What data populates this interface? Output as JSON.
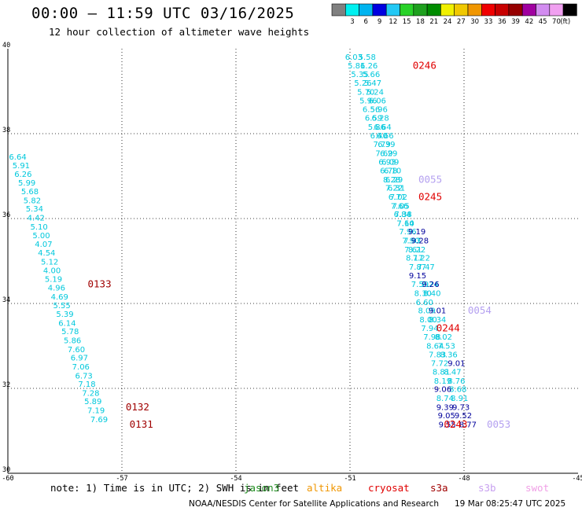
{
  "header": {
    "title": "00:00 – 11:59 UTC 03/16/2025",
    "subtitle": "12 hour collection of altimeter wave heights"
  },
  "legend": {
    "bins": [
      {
        "label": "",
        "color": "#808080"
      },
      {
        "label": "3",
        "color": "#00f0f0"
      },
      {
        "label": "6",
        "color": "#00b4f0"
      },
      {
        "label": "9",
        "color": "#0000e0"
      },
      {
        "label": "12",
        "color": "#22c8f5"
      },
      {
        "label": "15",
        "color": "#28d228"
      },
      {
        "label": "18",
        "color": "#1ea01e"
      },
      {
        "label": "21",
        "color": "#008c00"
      },
      {
        "label": "24",
        "color": "#f0f000"
      },
      {
        "label": "27",
        "color": "#f0c800"
      },
      {
        "label": "30",
        "color": "#f09600"
      },
      {
        "label": "33",
        "color": "#f00000"
      },
      {
        "label": "36",
        "color": "#c80000"
      },
      {
        "label": "39",
        "color": "#960000"
      },
      {
        "label": "42",
        "color": "#a000a0"
      },
      {
        "label": "45",
        "color": "#d28cf0"
      },
      {
        "label": "70",
        "color": "#f0a0f0"
      },
      {
        "label": "(ft)",
        "color": "#000000"
      }
    ]
  },
  "footer": {
    "note": "note: 1) Time is in UTC; 2) SWH is in feet",
    "credit": "NOAA/NESDIS Center for Satellite Applications and Research",
    "timestamp": "19 Mar 08:25:47 UTC 2025",
    "satellites": [
      {
        "name": "jason3",
        "color": "#1e8c1e"
      },
      {
        "name": "altika",
        "color": "#f09600"
      },
      {
        "name": "cryosat",
        "color": "#e00000"
      },
      {
        "name": "s3a",
        "color": "#a00000"
      },
      {
        "name": "s3b",
        "color": "#c8a0f0"
      },
      {
        "name": "swot",
        "color": "#f0a0e6"
      }
    ]
  },
  "chart_data": {
    "type": "scatter",
    "xlim": [
      -60,
      -45
    ],
    "ylim": [
      30,
      40
    ],
    "x_ticks": [
      -60,
      -57,
      -54,
      -51,
      -48,
      -45
    ],
    "y_ticks": [
      30,
      32,
      34,
      36,
      38,
      40
    ],
    "grid": true,
    "colors": {
      "cyan": "#00c8dc",
      "navy": "#00009c",
      "red": "#e00000",
      "maroon": "#a00000",
      "lavender": "#b4a0f0"
    },
    "series": [
      {
        "color": "cyan",
        "points": [
          [
            -59.74,
            37.45,
            "6.64"
          ],
          [
            -59.65,
            37.25,
            "5.91"
          ],
          [
            -59.6,
            37.05,
            "6.26"
          ],
          [
            -59.5,
            36.84,
            "5.99"
          ],
          [
            -59.42,
            36.64,
            "5.68"
          ],
          [
            -59.36,
            36.43,
            "5.82"
          ],
          [
            -59.3,
            36.23,
            "5.34"
          ],
          [
            -59.26,
            36.02,
            "4.42"
          ],
          [
            -59.18,
            35.81,
            "5.10"
          ],
          [
            -59.12,
            35.6,
            "5.00"
          ],
          [
            -59.06,
            35.4,
            "4.07"
          ],
          [
            -58.98,
            35.19,
            "4.54"
          ],
          [
            -58.9,
            34.98,
            "5.12"
          ],
          [
            -58.84,
            34.78,
            "4.00"
          ],
          [
            -58.8,
            34.57,
            "5.19"
          ],
          [
            -58.72,
            34.37,
            "4.96"
          ],
          [
            -58.64,
            34.16,
            "4.69"
          ],
          [
            -58.58,
            33.95,
            "5.55"
          ],
          [
            -58.5,
            33.75,
            "5.39"
          ],
          [
            -58.44,
            33.54,
            "6.14"
          ],
          [
            -58.36,
            33.34,
            "5.78"
          ],
          [
            -58.3,
            33.13,
            "5.86"
          ],
          [
            -58.2,
            32.92,
            "7.60"
          ],
          [
            -58.12,
            32.72,
            "6.97"
          ],
          [
            -58.08,
            32.51,
            "7.06"
          ],
          [
            -58.0,
            32.3,
            "6.73"
          ],
          [
            -57.92,
            32.1,
            "7.18"
          ],
          [
            -57.82,
            31.89,
            "7.28"
          ],
          [
            -57.76,
            31.69,
            "5.89"
          ],
          [
            -57.68,
            31.48,
            "7.19"
          ],
          [
            -57.6,
            31.27,
            "7.69"
          ]
        ]
      },
      {
        "color": "cyan",
        "points": [
          [
            -50.9,
            39.81,
            "6.03"
          ],
          [
            -50.83,
            39.6,
            "5.81"
          ],
          [
            -50.74,
            39.4,
            "5.35"
          ],
          [
            -50.66,
            39.19,
            "5.26"
          ],
          [
            -50.58,
            38.98,
            "5.70"
          ],
          [
            -50.52,
            38.78,
            "5.96"
          ],
          [
            -50.44,
            38.57,
            "6.56"
          ],
          [
            -50.38,
            38.37,
            "6.59"
          ],
          [
            -50.3,
            38.16,
            "5.86"
          ],
          [
            -50.24,
            37.95,
            "6.40"
          ],
          [
            -50.16,
            37.75,
            "7.79"
          ],
          [
            -50.1,
            37.54,
            "7.69"
          ],
          [
            -50.02,
            37.33,
            "6.93"
          ],
          [
            -49.98,
            37.13,
            "6.78"
          ],
          [
            -49.9,
            36.92,
            "8.28"
          ],
          [
            -49.84,
            36.72,
            "7.22"
          ],
          [
            -49.76,
            36.51,
            "6.71"
          ],
          [
            -49.7,
            36.3,
            "7.66"
          ],
          [
            -49.62,
            36.1,
            "6.84"
          ],
          [
            -49.54,
            35.89,
            "7.14"
          ],
          [
            -49.48,
            35.69,
            "7.96"
          ],
          [
            -49.4,
            35.48,
            "7.90"
          ],
          [
            -49.34,
            35.27,
            "7.61"
          ],
          [
            -49.3,
            35.07,
            "8.17"
          ],
          [
            -49.22,
            34.86,
            "7.87"
          ],
          [
            -49.16,
            34.45,
            "7.59"
          ],
          [
            -49.08,
            34.24,
            "8.30"
          ],
          [
            -49.04,
            34.03,
            "6.60"
          ],
          [
            -48.98,
            33.83,
            "8.09"
          ],
          [
            -48.94,
            33.62,
            "8.00"
          ],
          [
            -48.9,
            33.42,
            "7.94"
          ],
          [
            -48.84,
            33.21,
            "7.98"
          ],
          [
            -48.76,
            33.0,
            "8.64"
          ],
          [
            -48.7,
            32.8,
            "7.83"
          ],
          [
            -48.64,
            32.59,
            "7.72"
          ],
          [
            -48.6,
            32.39,
            "8.81"
          ],
          [
            -48.56,
            32.18,
            "8.19"
          ],
          [
            -48.5,
            31.77,
            "8.74"
          ]
        ]
      },
      {
        "color": "cyan",
        "points": [
          [
            -50.55,
            39.81,
            "5.58"
          ],
          [
            -50.5,
            39.6,
            "6.26"
          ],
          [
            -50.44,
            39.4,
            "5.66"
          ],
          [
            -50.4,
            39.19,
            "5.47"
          ],
          [
            -50.34,
            38.98,
            "5.24"
          ],
          [
            -50.28,
            38.78,
            "6.06"
          ],
          [
            -50.24,
            38.57,
            "5.96"
          ],
          [
            -50.2,
            38.37,
            "6.28"
          ],
          [
            -50.14,
            38.16,
            "6.64"
          ],
          [
            -50.08,
            37.95,
            "6.66"
          ],
          [
            -50.04,
            37.75,
            "6.39"
          ],
          [
            -49.98,
            37.54,
            "6.29"
          ],
          [
            -49.94,
            37.33,
            "6.09"
          ],
          [
            -49.88,
            37.13,
            "6.10"
          ],
          [
            -49.84,
            36.92,
            "6.29"
          ],
          [
            -49.78,
            36.72,
            "6.31"
          ],
          [
            -49.72,
            36.51,
            "7.02"
          ],
          [
            -49.66,
            36.3,
            "7.05"
          ],
          [
            -49.6,
            36.1,
            "7.38"
          ],
          [
            -49.54,
            35.89,
            "7.60"
          ],
          [
            -49.36,
            35.48,
            "7.93"
          ],
          [
            -49.24,
            35.27,
            "8.22"
          ],
          [
            -49.12,
            35.07,
            "7.22"
          ],
          [
            -49.0,
            34.86,
            "7.47"
          ],
          [
            -48.9,
            34.45,
            "7.24"
          ],
          [
            -48.84,
            34.24,
            "8.40"
          ],
          [
            -48.7,
            33.62,
            "8.34"
          ],
          [
            -48.54,
            33.21,
            "8.02"
          ],
          [
            -48.46,
            33.0,
            "7.53"
          ],
          [
            -48.4,
            32.8,
            "8.36"
          ],
          [
            -48.3,
            32.39,
            "8.47"
          ],
          [
            -48.2,
            32.18,
            "8.76"
          ],
          [
            -48.16,
            31.98,
            "8.68"
          ],
          [
            -48.12,
            31.77,
            "8.91"
          ]
        ]
      },
      {
        "color": "navy",
        "points": [
          [
            -49.24,
            35.69,
            "9.19"
          ],
          [
            -49.16,
            35.48,
            "9.28"
          ],
          [
            -49.22,
            34.66,
            "9.15"
          ],
          [
            -48.88,
            34.45,
            "9.26"
          ],
          [
            -48.7,
            33.83,
            "9.01"
          ],
          [
            -48.56,
            31.98,
            "9.06"
          ],
          [
            -48.5,
            31.56,
            "9.39"
          ],
          [
            -48.46,
            31.36,
            "9.05"
          ],
          [
            -48.44,
            31.15,
            "9.55"
          ],
          [
            -48.2,
            32.59,
            "9.01"
          ],
          [
            -48.08,
            31.56,
            "9.73"
          ],
          [
            -48.02,
            31.36,
            "9.52"
          ],
          [
            -47.9,
            31.15,
            "8.77"
          ]
        ]
      }
    ],
    "passes": [
      {
        "x": -57.9,
        "y": 34.45,
        "label": "0133",
        "color": "maroon"
      },
      {
        "x": -56.9,
        "y": 31.56,
        "label": "0132",
        "color": "maroon"
      },
      {
        "x": -56.8,
        "y": 31.15,
        "label": "0131",
        "color": "maroon"
      },
      {
        "x": -49.35,
        "y": 39.6,
        "label": "0246",
        "color": "red"
      },
      {
        "x": -49.2,
        "y": 36.92,
        "label": "0055",
        "color": "lavender"
      },
      {
        "x": -49.2,
        "y": 36.51,
        "label": "0245",
        "color": "red"
      },
      {
        "x": -47.9,
        "y": 33.83,
        "label": "0054",
        "color": "lavender"
      },
      {
        "x": -48.73,
        "y": 33.42,
        "label": "0244",
        "color": "red"
      },
      {
        "x": -48.53,
        "y": 31.15,
        "label": "0243",
        "color": "red"
      },
      {
        "x": -47.4,
        "y": 31.15,
        "label": "0053",
        "color": "lavender"
      }
    ]
  }
}
